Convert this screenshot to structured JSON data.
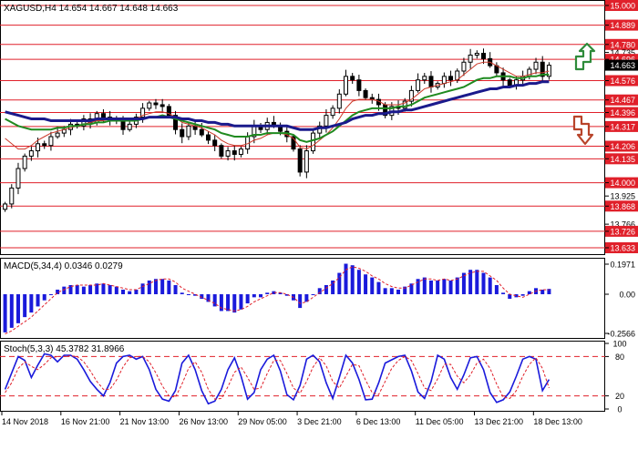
{
  "header": {
    "symbol_line": "XAGUSD,H4  14.654 14.667 14.648 14.663"
  },
  "colors": {
    "background": "#ffffff",
    "frame": "#000000",
    "level_line": "#e0202a",
    "level_label_bg": "#e0202a",
    "current_label_bg": "#000000",
    "candle": "#000000",
    "ma_fast": "#cc3a2a",
    "ma_mid": "#1f8a1f",
    "ma_slow": "#1a1a8c",
    "macd_hist": "#1a1adb",
    "macd_signal": "#e0202a",
    "stoch_main": "#1a1adb",
    "stoch_signal": "#e0202a",
    "arrow_up": "#2e8b3a",
    "arrow_down": "#b8442a"
  },
  "chart_data": [
    {
      "type": "candlestick",
      "symbol": "XAGUSD",
      "timeframe": "H4",
      "ohlc_last": {
        "open": 14.654,
        "high": 14.667,
        "low": 14.648,
        "close": 14.663
      },
      "ylim": [
        13.633,
        15.0
      ],
      "price_axis_labels": [
        "15.000",
        "14.889",
        "14.780",
        "14.735",
        "14.696",
        "14.663",
        "14.576",
        "14.467",
        "14.396",
        "14.317",
        "14.206",
        "14.135",
        "14.000",
        "13.925",
        "13.868",
        "13.766",
        "13.726",
        "13.633"
      ],
      "horizontal_levels": [
        15.0,
        14.889,
        14.78,
        14.696,
        14.576,
        14.467,
        14.396,
        14.317,
        14.206,
        14.135,
        14.0,
        13.868,
        13.726,
        13.633
      ],
      "plain_levels": [
        "14.735",
        "13.925",
        "13.766"
      ],
      "current_price": "14.663",
      "x_tick_labels": [
        "14 Nov 2018",
        "16 Nov 21:00",
        "21 Nov 13:00",
        "26 Nov 13:00",
        "29 Nov 05:00",
        "3 Dec 21:00",
        "6 Dec 13:00",
        "11 Dec 05:00",
        "13 Dec 21:00",
        "18 Dec 13:00"
      ],
      "closes": [
        13.88,
        13.97,
        14.08,
        14.15,
        14.18,
        14.22,
        14.21,
        14.26,
        14.28,
        14.3,
        14.33,
        14.32,
        14.36,
        14.34,
        14.39,
        14.37,
        14.36,
        14.35,
        14.3,
        14.33,
        14.37,
        14.42,
        14.45,
        14.44,
        14.43,
        14.38,
        14.3,
        14.26,
        14.32,
        14.3,
        14.27,
        14.24,
        14.21,
        14.15,
        14.18,
        14.16,
        14.19,
        14.26,
        14.32,
        14.3,
        14.34,
        14.32,
        14.29,
        14.26,
        14.19,
        14.06,
        14.18,
        14.28,
        14.32,
        14.38,
        14.42,
        14.5,
        14.6,
        14.58,
        14.52,
        14.48,
        14.47,
        14.44,
        14.38,
        14.43,
        14.42,
        14.46,
        14.52,
        14.58,
        14.6,
        14.54,
        14.56,
        14.6,
        14.58,
        14.63,
        14.68,
        14.72,
        14.73,
        14.7,
        14.66,
        14.62,
        14.58,
        14.55,
        14.58,
        14.6,
        14.64,
        14.68,
        14.6,
        14.663
      ],
      "series": [
        {
          "kind": "ma",
          "role": "fast",
          "values": [
            14.25,
            14.22,
            14.19,
            14.19,
            14.21,
            14.24,
            14.26,
            14.28,
            14.29,
            14.3,
            14.31,
            14.32,
            14.33,
            14.34,
            14.35,
            14.35,
            14.36,
            14.36,
            14.35,
            14.35,
            14.36,
            14.38,
            14.39,
            14.4,
            14.4,
            14.39,
            14.37,
            14.34,
            14.33,
            14.32,
            14.31,
            14.29,
            14.27,
            14.24,
            14.22,
            14.21,
            14.21,
            14.22,
            14.24,
            14.25,
            14.27,
            14.28,
            14.28,
            14.27,
            14.25,
            14.2,
            14.19,
            14.21,
            14.24,
            14.27,
            14.31,
            14.36,
            14.42,
            14.46,
            14.47,
            14.47,
            14.47,
            14.46,
            14.44,
            14.44,
            14.44,
            14.45,
            14.47,
            14.5,
            14.53,
            14.54,
            14.55,
            14.56,
            14.57,
            14.58,
            14.61,
            14.64,
            14.67,
            14.68,
            14.68,
            14.66,
            14.64,
            14.62,
            14.6,
            14.6,
            14.61,
            14.62,
            14.62,
            14.63
          ]
        },
        {
          "kind": "ma",
          "role": "mid",
          "values": [
            14.36,
            14.34,
            14.32,
            14.31,
            14.3,
            14.3,
            14.3,
            14.3,
            14.31,
            14.31,
            14.32,
            14.32,
            14.33,
            14.33,
            14.34,
            14.34,
            14.35,
            14.35,
            14.35,
            14.35,
            14.35,
            14.36,
            14.37,
            14.37,
            14.38,
            14.37,
            14.36,
            14.35,
            14.34,
            14.33,
            14.32,
            14.31,
            14.3,
            14.28,
            14.27,
            14.26,
            14.26,
            14.26,
            14.27,
            14.27,
            14.28,
            14.28,
            14.28,
            14.28,
            14.27,
            14.24,
            14.23,
            14.24,
            14.25,
            14.27,
            14.29,
            14.32,
            14.35,
            14.38,
            14.4,
            14.41,
            14.42,
            14.42,
            14.42,
            14.42,
            14.43,
            14.43,
            14.44,
            14.46,
            14.48,
            14.49,
            14.5,
            14.51,
            14.52,
            14.53,
            14.54,
            14.56,
            14.58,
            14.59,
            14.59,
            14.6,
            14.6,
            14.6,
            14.59,
            14.59,
            14.6,
            14.6,
            14.61,
            14.61
          ]
        },
        {
          "kind": "ma",
          "role": "slow",
          "values": [
            14.4,
            14.39,
            14.38,
            14.37,
            14.36,
            14.36,
            14.36,
            14.35,
            14.35,
            14.35,
            14.35,
            14.35,
            14.35,
            14.35,
            14.36,
            14.36,
            14.36,
            14.36,
            14.36,
            14.36,
            14.36,
            14.36,
            14.37,
            14.37,
            14.37,
            14.37,
            14.37,
            14.36,
            14.36,
            14.35,
            14.35,
            14.34,
            14.34,
            14.33,
            14.33,
            14.32,
            14.32,
            14.32,
            14.32,
            14.32,
            14.32,
            14.32,
            14.32,
            14.32,
            14.31,
            14.3,
            14.3,
            14.3,
            14.31,
            14.31,
            14.32,
            14.33,
            14.34,
            14.36,
            14.37,
            14.38,
            14.38,
            14.39,
            14.39,
            14.4,
            14.4,
            14.41,
            14.41,
            14.42,
            14.43,
            14.44,
            14.45,
            14.46,
            14.47,
            14.48,
            14.49,
            14.5,
            14.51,
            14.52,
            14.53,
            14.53,
            14.54,
            14.54,
            14.55,
            14.55,
            14.56,
            14.56,
            14.57,
            14.57
          ]
        }
      ]
    },
    {
      "type": "bar",
      "indicator": "MACD",
      "title": "MACD(5,34,4) 0.0346 0.0279",
      "tick_labels": [
        "0.1971",
        "0.00",
        "-0.2566"
      ],
      "ylim": [
        -0.2566,
        0.1971
      ],
      "values": [
        -0.25,
        -0.22,
        -0.19,
        -0.15,
        -0.12,
        -0.08,
        -0.04,
        0.0,
        0.03,
        0.05,
        0.06,
        0.06,
        0.05,
        0.06,
        0.07,
        0.07,
        0.06,
        0.05,
        0.03,
        0.02,
        0.03,
        0.07,
        0.09,
        0.1,
        0.1,
        0.09,
        0.06,
        0.01,
        0.0,
        -0.01,
        -0.03,
        -0.05,
        -0.08,
        -0.11,
        -0.11,
        -0.12,
        -0.1,
        -0.06,
        -0.02,
        -0.02,
        0.01,
        0.02,
        0.01,
        -0.01,
        -0.04,
        -0.09,
        -0.05,
        0.0,
        0.04,
        0.06,
        0.09,
        0.14,
        0.2,
        0.19,
        0.16,
        0.13,
        0.11,
        0.08,
        0.04,
        0.04,
        0.03,
        0.05,
        0.07,
        0.1,
        0.11,
        0.09,
        0.09,
        0.1,
        0.09,
        0.11,
        0.14,
        0.16,
        0.16,
        0.14,
        0.11,
        0.06,
        0.01,
        -0.03,
        -0.02,
        -0.01,
        0.02,
        0.04,
        0.03,
        0.035
      ],
      "signal": [
        -0.26,
        -0.24,
        -0.21,
        -0.18,
        -0.15,
        -0.11,
        -0.07,
        -0.03,
        0.01,
        0.03,
        0.05,
        0.06,
        0.06,
        0.06,
        0.06,
        0.07,
        0.06,
        0.05,
        0.04,
        0.03,
        0.03,
        0.05,
        0.07,
        0.09,
        0.1,
        0.1,
        0.08,
        0.04,
        0.02,
        0.0,
        -0.02,
        -0.04,
        -0.06,
        -0.09,
        -0.1,
        -0.11,
        -0.1,
        -0.08,
        -0.05,
        -0.03,
        -0.01,
        0.01,
        0.01,
        0.0,
        -0.02,
        -0.06,
        -0.05,
        -0.02,
        0.01,
        0.04,
        0.07,
        0.11,
        0.16,
        0.18,
        0.17,
        0.15,
        0.12,
        0.1,
        0.07,
        0.05,
        0.04,
        0.04,
        0.06,
        0.08,
        0.1,
        0.1,
        0.09,
        0.1,
        0.09,
        0.1,
        0.12,
        0.14,
        0.15,
        0.15,
        0.12,
        0.09,
        0.04,
        0.0,
        -0.01,
        -0.02,
        0.0,
        0.02,
        0.03,
        0.028
      ]
    },
    {
      "type": "line",
      "indicator": "Stochastic",
      "title": "Stoch(5,3,3) 45.3782 31.8966",
      "tick_labels": [
        "100",
        "80",
        "20",
        "0"
      ],
      "ylim": [
        0,
        100
      ],
      "levels": [
        80,
        20
      ],
      "series": [
        {
          "role": "main",
          "values": [
            30,
            55,
            80,
            74,
            48,
            67,
            84,
            82,
            72,
            82,
            82,
            76,
            60,
            42,
            30,
            20,
            40,
            70,
            80,
            82,
            76,
            80,
            60,
            30,
            15,
            12,
            28,
            70,
            82,
            60,
            28,
            8,
            12,
            30,
            60,
            78,
            50,
            15,
            25,
            60,
            76,
            82,
            58,
            22,
            14,
            36,
            76,
            82,
            72,
            40,
            16,
            48,
            82,
            70,
            45,
            14,
            15,
            40,
            70,
            75,
            80,
            82,
            58,
            26,
            16,
            42,
            82,
            76,
            48,
            30,
            52,
            78,
            80,
            60,
            25,
            10,
            14,
            26,
            50,
            76,
            80,
            76,
            28,
            45
          ]
        },
        {
          "role": "signal",
          "values": [
            25,
            40,
            62,
            72,
            65,
            60,
            68,
            78,
            80,
            80,
            81,
            80,
            72,
            58,
            42,
            30,
            30,
            44,
            64,
            78,
            80,
            80,
            72,
            55,
            35,
            20,
            18,
            38,
            62,
            72,
            56,
            30,
            15,
            16,
            34,
            56,
            64,
            48,
            30,
            32,
            54,
            74,
            74,
            54,
            32,
            24,
            42,
            64,
            78,
            66,
            42,
            32,
            50,
            68,
            66,
            44,
            25,
            22,
            42,
            62,
            74,
            80,
            74,
            54,
            32,
            28,
            46,
            68,
            68,
            50,
            40,
            52,
            70,
            76,
            62,
            38,
            18,
            16,
            28,
            50,
            68,
            78,
            62,
            32
          ]
        }
      ]
    }
  ]
}
